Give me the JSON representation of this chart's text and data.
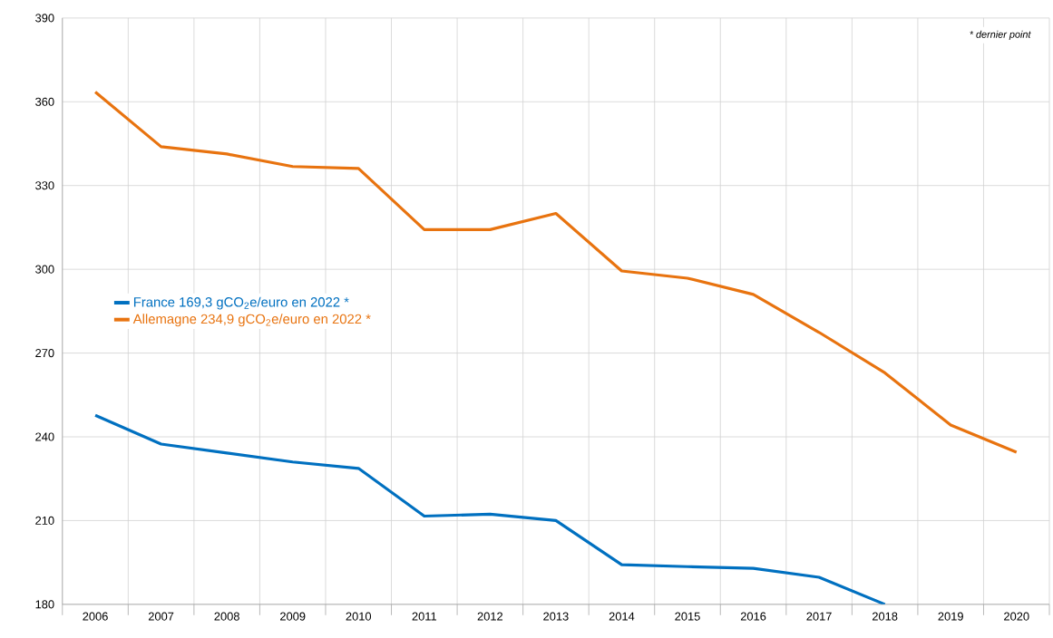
{
  "chart_data": {
    "type": "line",
    "categories": [
      "2006",
      "2007",
      "2008",
      "2009",
      "2010",
      "2011",
      "2012",
      "2013",
      "2014",
      "2015",
      "2016",
      "2017",
      "2018",
      "2019",
      "2020"
    ],
    "series": [
      {
        "name": "France 169,3  gCO$_{2}$e/euro en 2022  *",
        "color": "#0070c0",
        "values": [
          247.7,
          237.4,
          234.2,
          231,
          228.7,
          211.6,
          212.3,
          210,
          194.2,
          193.5,
          192.9,
          189.7,
          180,
          null,
          null
        ]
      },
      {
        "name": "Allemagne 234,9 gCO$_{2}$e/euro en 2022  *",
        "color": "#e8730f",
        "values": [
          363.5,
          343.9,
          341.3,
          336.8,
          336.1,
          314.2,
          314.2,
          320,
          299.4,
          296.8,
          291,
          277.4,
          262.9,
          244.2,
          234.5
        ]
      }
    ],
    "ylim": [
      180,
      390
    ],
    "yticks": [
      180,
      210,
      240,
      270,
      300,
      330,
      360,
      390
    ],
    "grid": true,
    "legend": "left",
    "marker": "none",
    "line_style": "solid",
    "annotations": [
      "* dernier point"
    ]
  }
}
